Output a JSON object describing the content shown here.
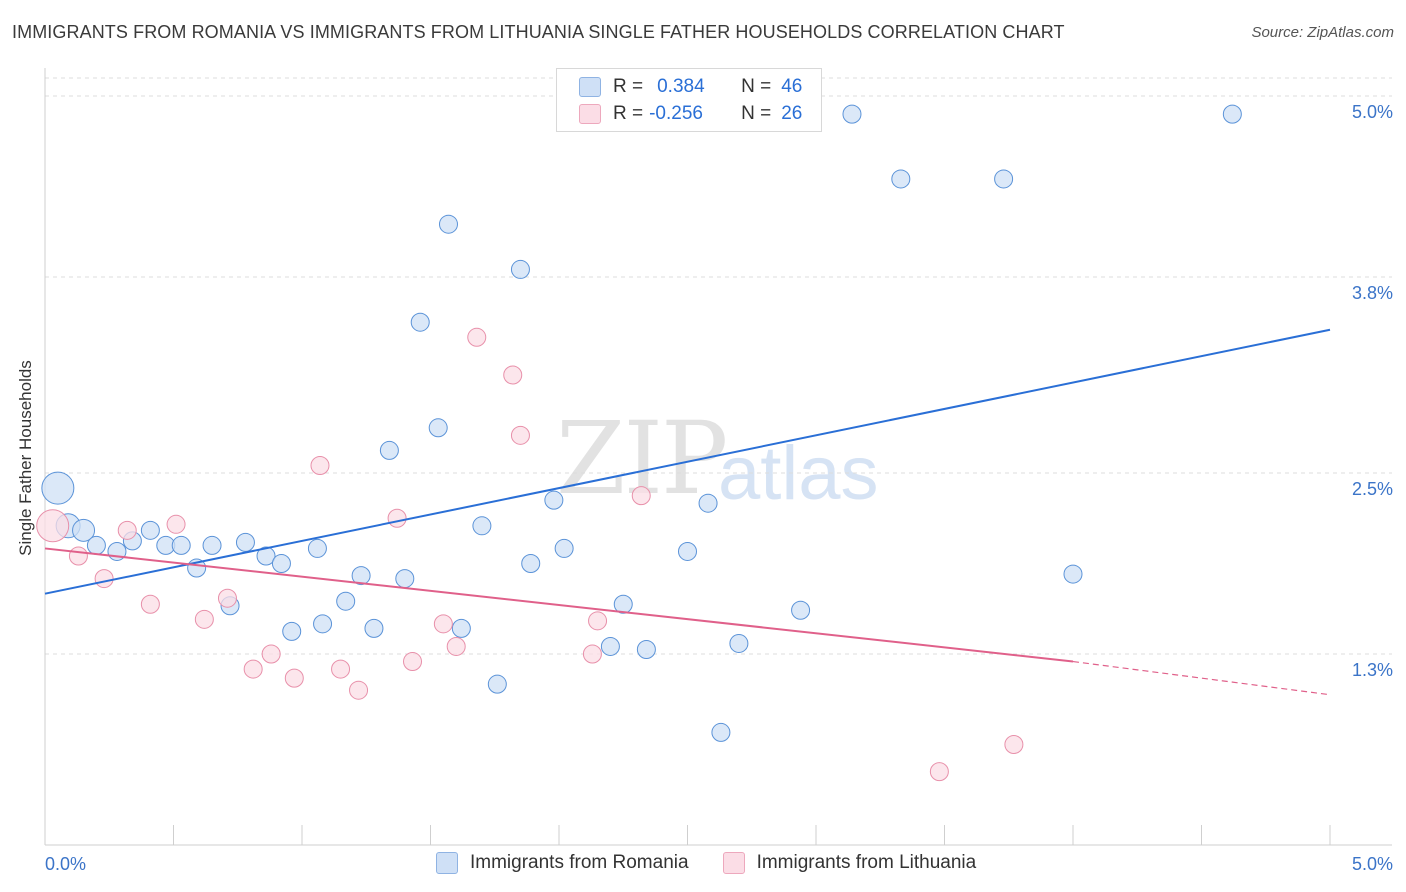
{
  "title": "IMMIGRANTS FROM ROMANIA VS IMMIGRANTS FROM LITHUANIA SINGLE FATHER HOUSEHOLDS CORRELATION CHART",
  "source": "Source: ZipAtlas.com",
  "watermark": {
    "zip": "ZIP",
    "atlas": "atlas"
  },
  "legend": {
    "romania": {
      "r_label": "R =",
      "r_value": "0.384",
      "n_label": "N =",
      "n_value": "46",
      "color": "#aac8f0"
    },
    "lithuania": {
      "r_label": "R =",
      "r_value": "-0.256",
      "n_label": "N =",
      "n_value": "26",
      "color": "#f6b8c8"
    }
  },
  "bottom_legend": [
    "Immigrants from Romania",
    "Immigrants from Lithuania"
  ],
  "chart_data": {
    "type": "scatter",
    "ylabel": "Single Father Households",
    "xlim": [
      0,
      5.0
    ],
    "ylim": [
      0,
      5.2
    ],
    "x_tick_labels": [
      "0.0%",
      "5.0%"
    ],
    "y_ticks": [
      1.3,
      2.5,
      3.8,
      5.0
    ],
    "y_tick_labels": [
      "1.3%",
      "2.5%",
      "3.8%",
      "5.0%"
    ],
    "grid": true,
    "series": [
      {
        "name": "Immigrants from Romania",
        "color": "#5b93d8",
        "fill": "#cfe0f6",
        "trend": {
          "x": [
            0.0,
            5.0
          ],
          "y": [
            1.7,
            3.45
          ],
          "color": "#2a6fd6"
        },
        "points": [
          [
            0.05,
            2.4,
            16
          ],
          [
            0.09,
            2.15,
            12
          ],
          [
            0.15,
            2.12,
            11
          ],
          [
            0.2,
            2.02,
            9
          ],
          [
            0.28,
            1.98,
            9
          ],
          [
            0.34,
            2.05,
            9
          ],
          [
            0.41,
            2.12,
            9
          ],
          [
            0.47,
            2.02,
            9
          ],
          [
            0.53,
            2.02,
            9
          ],
          [
            0.59,
            1.87,
            9
          ],
          [
            0.65,
            2.02,
            9
          ],
          [
            0.72,
            1.62,
            9
          ],
          [
            0.78,
            2.04,
            9
          ],
          [
            0.86,
            1.95,
            9
          ],
          [
            0.92,
            1.9,
            9
          ],
          [
            0.96,
            1.45,
            9
          ],
          [
            1.06,
            2.0,
            9
          ],
          [
            1.08,
            1.5,
            9
          ],
          [
            1.17,
            1.65,
            9
          ],
          [
            1.23,
            1.82,
            9
          ],
          [
            1.28,
            1.47,
            9
          ],
          [
            1.34,
            2.65,
            9
          ],
          [
            1.4,
            1.8,
            9
          ],
          [
            1.46,
            3.5,
            9
          ],
          [
            1.53,
            2.8,
            9
          ],
          [
            1.57,
            4.15,
            9
          ],
          [
            1.62,
            1.47,
            9
          ],
          [
            1.7,
            2.15,
            9
          ],
          [
            1.76,
            1.1,
            9
          ],
          [
            1.85,
            3.85,
            9
          ],
          [
            1.89,
            1.9,
            9
          ],
          [
            1.98,
            2.32,
            9
          ],
          [
            2.02,
            2.0,
            9
          ],
          [
            2.2,
            1.35,
            9
          ],
          [
            2.25,
            1.63,
            9
          ],
          [
            2.34,
            1.33,
            9
          ],
          [
            2.5,
            1.98,
            9
          ],
          [
            2.58,
            2.3,
            9
          ],
          [
            2.63,
            0.78,
            9
          ],
          [
            2.7,
            1.37,
            9
          ],
          [
            2.94,
            1.59,
            9
          ],
          [
            3.14,
            4.88,
            9
          ],
          [
            3.33,
            4.45,
            9
          ],
          [
            3.73,
            4.45,
            9
          ],
          [
            4.0,
            1.83,
            9
          ],
          [
            4.62,
            4.88,
            9
          ]
        ]
      },
      {
        "name": "Immigrants from Lithuania",
        "color": "#e890aa",
        "fill": "#fbdde6",
        "trend": {
          "x": [
            0.0,
            4.0
          ],
          "y": [
            2.0,
            1.25
          ],
          "color": "#e0608a",
          "dash_x": [
            4.0,
            5.0
          ],
          "dash_y": [
            1.25,
            1.03
          ]
        },
        "points": [
          [
            0.03,
            2.15,
            16
          ],
          [
            0.13,
            1.95,
            9
          ],
          [
            0.23,
            1.8,
            9
          ],
          [
            0.32,
            2.12,
            9
          ],
          [
            0.41,
            1.63,
            9
          ],
          [
            0.51,
            2.16,
            9
          ],
          [
            0.62,
            1.53,
            9
          ],
          [
            0.71,
            1.67,
            9
          ],
          [
            0.81,
            1.2,
            9
          ],
          [
            0.88,
            1.3,
            9
          ],
          [
            0.97,
            1.14,
            9
          ],
          [
            1.07,
            2.55,
            9
          ],
          [
            1.15,
            1.2,
            9
          ],
          [
            1.22,
            1.06,
            9
          ],
          [
            1.37,
            2.2,
            9
          ],
          [
            1.43,
            1.25,
            9
          ],
          [
            1.55,
            1.5,
            9
          ],
          [
            1.6,
            1.35,
            9
          ],
          [
            1.68,
            3.4,
            9
          ],
          [
            1.82,
            3.15,
            9
          ],
          [
            1.85,
            2.75,
            9
          ],
          [
            2.13,
            1.3,
            9
          ],
          [
            2.15,
            1.52,
            9
          ],
          [
            2.32,
            2.35,
            9
          ],
          [
            3.48,
            0.52,
            9
          ],
          [
            3.77,
            0.7,
            9
          ]
        ]
      }
    ]
  }
}
